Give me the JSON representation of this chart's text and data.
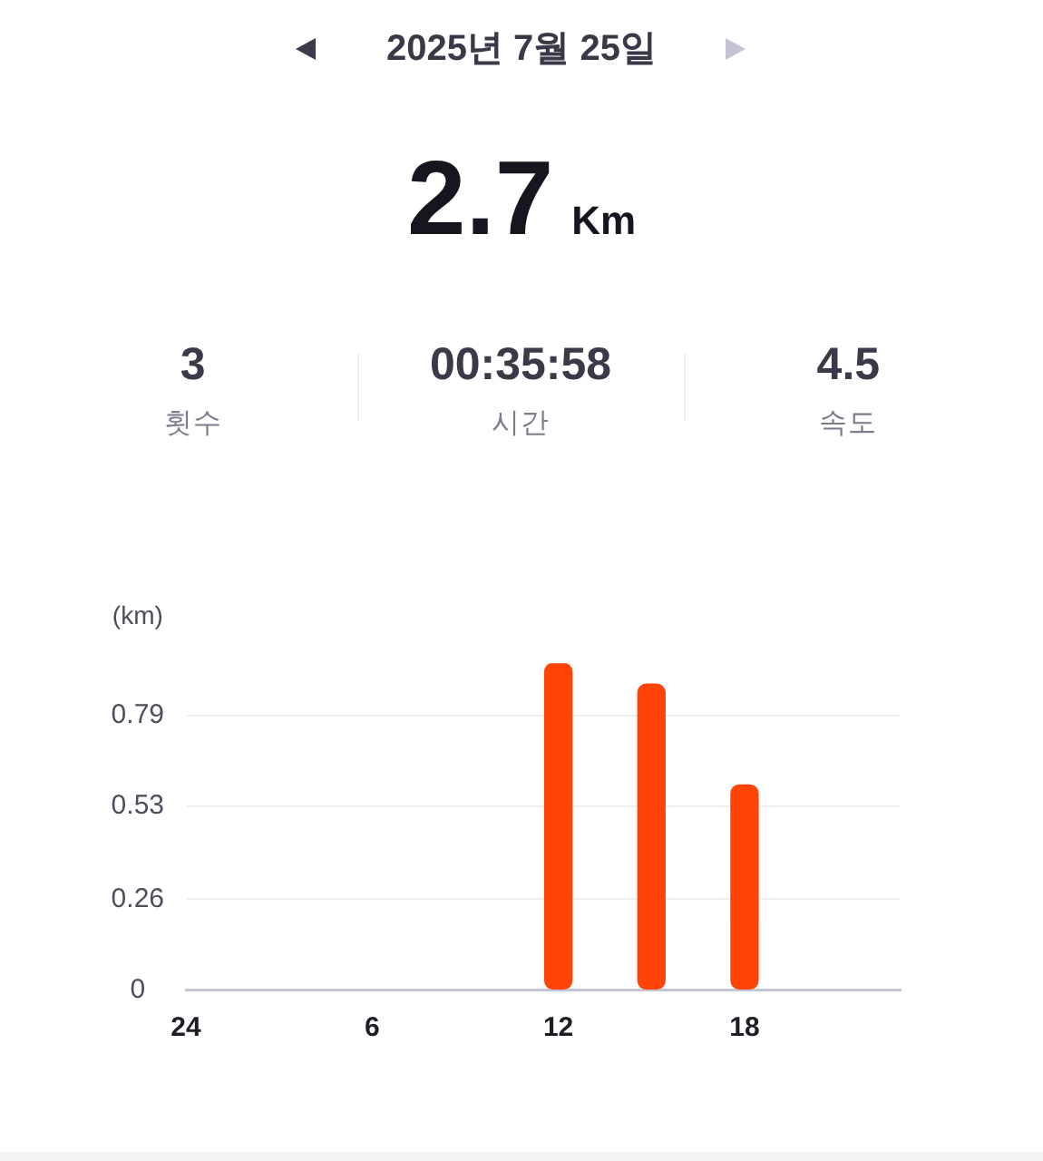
{
  "chart_data": {
    "type": "bar",
    "title": "2025년 7월 25일",
    "annotations": [
      "2.7",
      "Km",
      "3",
      "횟수",
      "00:35:58",
      "시간",
      "4.5",
      "속도"
    ],
    "ylabel": "(km)",
    "categories": [
      "24",
      null,
      null,
      null,
      null,
      null,
      "6",
      null,
      null,
      null,
      null,
      null,
      "12",
      null,
      null,
      null,
      null,
      null,
      "18",
      null,
      null,
      null,
      null,
      null
    ],
    "values": [
      null,
      null,
      null,
      null,
      null,
      null,
      null,
      null,
      null,
      null,
      null,
      null,
      0.94,
      null,
      null,
      0.88,
      null,
      null,
      0.59,
      null,
      null,
      null,
      null,
      null
    ],
    "color": "#ff4405",
    "ylim": [
      0,
      0.94
    ],
    "yticks": [
      0,
      0.26,
      0.53,
      0.79
    ],
    "grid": "y"
  }
}
